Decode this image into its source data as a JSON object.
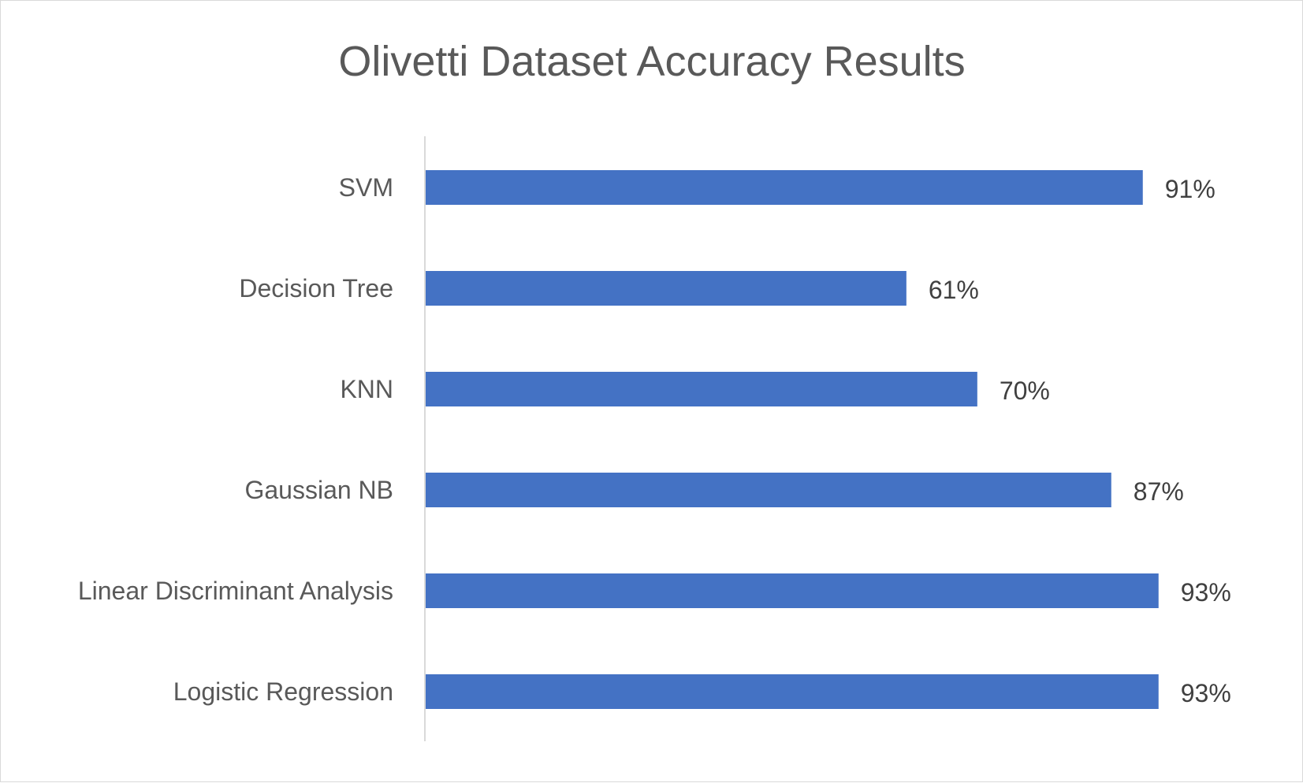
{
  "chart_data": {
    "type": "bar",
    "orientation": "horizontal",
    "title": "Olivetti Dataset Accuracy Results",
    "xlabel": "",
    "ylabel": "",
    "categories": [
      "SVM",
      "Decision Tree",
      "KNN",
      "Gaussian NB",
      "Linear Discriminant Analysis",
      "Logistic Regression"
    ],
    "values": [
      0.91,
      0.61,
      0.7,
      0.87,
      0.93,
      0.93
    ],
    "data_labels": [
      "91%",
      "61%",
      "70%",
      "87%",
      "93%",
      "93%"
    ],
    "xlim": [
      0,
      1
    ],
    "bar_color": "#4472C4",
    "grid": false,
    "legend": "none"
  }
}
